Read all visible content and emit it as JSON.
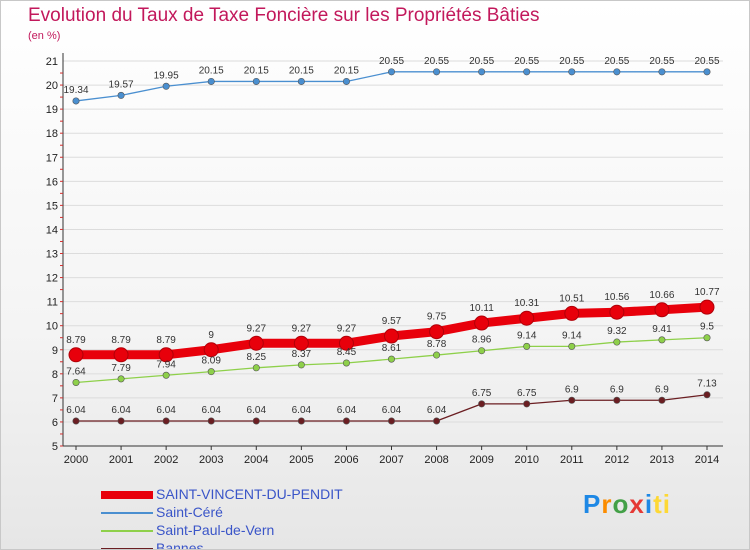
{
  "chart_data": {
    "type": "line",
    "title": "Evolution du Taux de Taxe Foncière sur les Propriétés Bâties",
    "subtitle": "(en %)",
    "x": [
      "2000",
      "2001",
      "2002",
      "2003",
      "2004",
      "2005",
      "2006",
      "2007",
      "2008",
      "2009",
      "2010",
      "2011",
      "2012",
      "2013",
      "2014"
    ],
    "ylim": [
      5,
      21
    ],
    "yticks": [
      5,
      6,
      7,
      8,
      9,
      10,
      11,
      12,
      13,
      14,
      15,
      16,
      17,
      18,
      19,
      20,
      21
    ],
    "grid": "horizontal",
    "legend_position": "bottom-left",
    "series": [
      {
        "name": "SAINT-VINCENT-DU-PENDIT",
        "color": "#e8000b",
        "values": [
          8.79,
          8.79,
          8.79,
          9,
          9.27,
          9.27,
          9.27,
          9.57,
          9.75,
          10.11,
          10.31,
          10.51,
          10.56,
          10.66,
          10.77
        ],
        "labels": [
          "8.79",
          "8.79",
          "8.79",
          "9",
          "9.27",
          "9.27",
          "9.27",
          "9.57",
          "9.75",
          "10.11",
          "10.31",
          "10.51",
          "10.56",
          "10.66",
          "10.77"
        ]
      },
      {
        "name": "Saint-Céré",
        "color": "#4a8fd0",
        "values": [
          19.34,
          19.57,
          19.95,
          20.15,
          20.15,
          20.15,
          20.15,
          20.55,
          20.55,
          20.55,
          20.55,
          20.55,
          20.55,
          20.55,
          20.55
        ],
        "labels": [
          "19.34",
          "19.57",
          "19.95",
          "20.15",
          "20.15",
          "20.15",
          "20.15",
          "20.55",
          "20.55",
          "20.55",
          "20.55",
          "20.55",
          "20.55",
          "20.55",
          "20.55"
        ]
      },
      {
        "name": "Saint-Paul-de-Vern",
        "color": "#8ed04a",
        "values": [
          7.64,
          7.79,
          7.94,
          8.09,
          8.25,
          8.37,
          8.45,
          8.61,
          8.78,
          8.96,
          9.14,
          9.14,
          9.32,
          9.41,
          9.5
        ],
        "labels": [
          "7.64",
          "7.79",
          "7.94",
          "8.09",
          "8.25",
          "8.37",
          "8.45",
          "8.61",
          "8.78",
          "8.96",
          "9.14",
          "9.14",
          "9.32",
          "9.41",
          "9.5"
        ]
      },
      {
        "name": "Bannes",
        "color": "#6b1e22",
        "values": [
          6.04,
          6.04,
          6.04,
          6.04,
          6.04,
          6.04,
          6.04,
          6.04,
          6.04,
          6.75,
          6.75,
          6.9,
          6.9,
          6.9,
          7.13
        ],
        "labels": [
          "6.04",
          "6.04",
          "6.04",
          "6.04",
          "6.04",
          "6.04",
          "6.04",
          "6.04",
          "6.04",
          "6.75",
          "6.75",
          "6.9",
          "6.9",
          "6.9",
          "7.13"
        ]
      }
    ]
  },
  "logo": {
    "p": "P",
    "r": "r",
    "o": "o",
    "x": "x",
    "i": "i",
    "t": "ti"
  }
}
